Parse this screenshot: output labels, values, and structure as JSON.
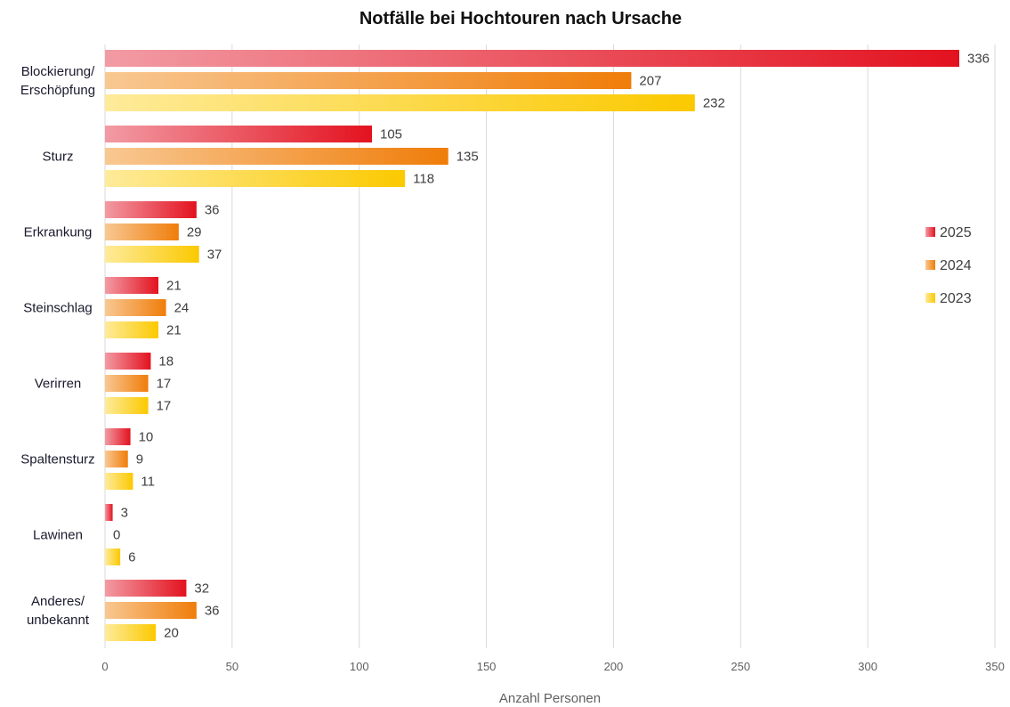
{
  "chart_data": {
    "type": "bar",
    "orientation": "horizontal",
    "title": "Notfälle bei Hochtouren nach Ursache",
    "xlabel": "Anzahl Personen",
    "ylabel": "",
    "xlim": [
      0,
      350
    ],
    "x_ticks": [
      0,
      50,
      100,
      150,
      200,
      250,
      300,
      350
    ],
    "grid": true,
    "legend_position": "right",
    "categories": [
      [
        "Blockierung/",
        "Erschöpfung"
      ],
      [
        "Sturz"
      ],
      [
        "Erkrankung"
      ],
      [
        "Steinschlag"
      ],
      [
        "Verirren"
      ],
      [
        "Spaltensturz"
      ],
      [
        "Lawinen"
      ],
      [
        "Anderes/",
        "unbekannt"
      ]
    ],
    "series": [
      {
        "name": "2025",
        "color": "#e3121f",
        "light": "#f29ba4",
        "values": [
          336,
          105,
          36,
          21,
          18,
          10,
          3,
          32
        ]
      },
      {
        "name": "2024",
        "color": "#f07d0a",
        "light": "#f8c892",
        "values": [
          207,
          135,
          29,
          24,
          17,
          9,
          0,
          36
        ]
      },
      {
        "name": "2023",
        "color": "#fbc900",
        "light": "#feeb9a",
        "values": [
          232,
          118,
          37,
          21,
          17,
          11,
          6,
          20
        ]
      }
    ]
  }
}
